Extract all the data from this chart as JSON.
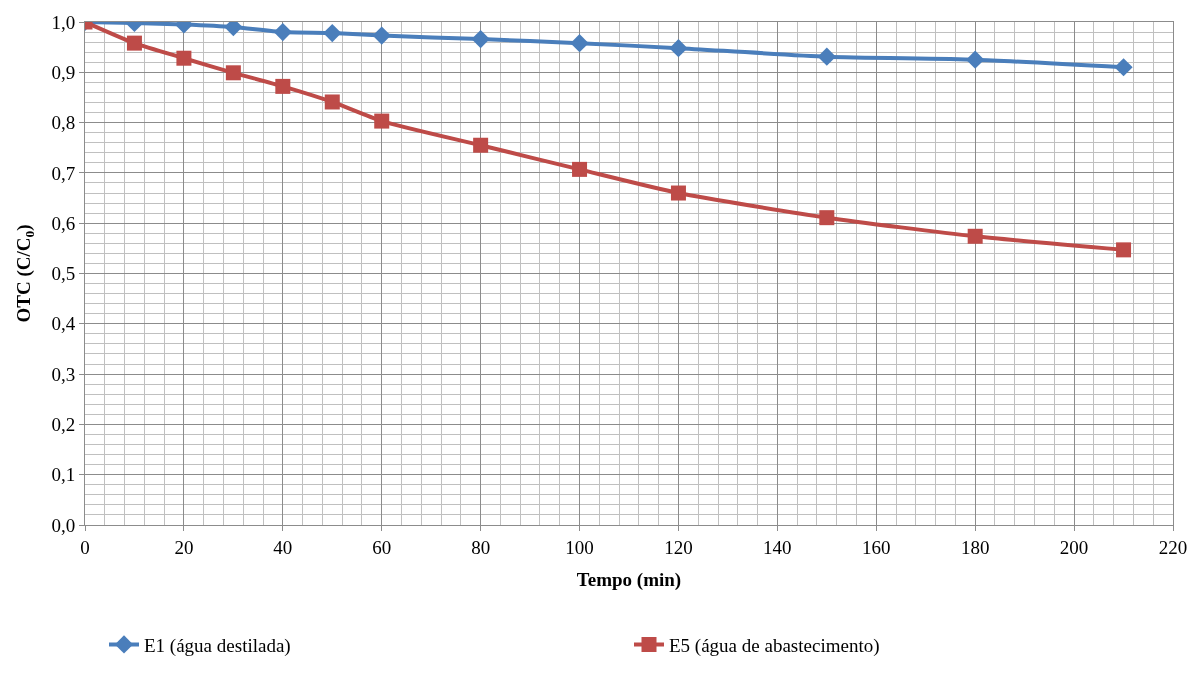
{
  "chart_data": {
    "type": "line",
    "xlabel": "Tempo (min)",
    "ylabel": "OTC (C/C$_{0}$)",
    "x": [
      0,
      10,
      20,
      30,
      40,
      50,
      60,
      80,
      100,
      120,
      150,
      180,
      210
    ],
    "series": [
      {
        "name": "E1 (água destilada)",
        "color": "#4a7ebb",
        "marker": "diamond",
        "values": [
          1.0,
          0.998,
          0.995,
          0.99,
          0.98,
          0.978,
          0.973,
          0.966,
          0.958,
          0.948,
          0.931,
          0.925,
          0.91
        ]
      },
      {
        "name": "E5 (água de abastecimento)",
        "color": "#be4b48",
        "marker": "square",
        "values": [
          1.0,
          0.958,
          0.928,
          0.899,
          0.872,
          0.841,
          0.803,
          0.755,
          0.707,
          0.66,
          0.611,
          0.574,
          0.547
        ]
      }
    ],
    "xlim": [
      0,
      220
    ],
    "xticks": [
      0,
      20,
      40,
      60,
      80,
      100,
      120,
      140,
      160,
      180,
      200,
      220
    ],
    "ylim": [
      0,
      1.0
    ],
    "yticks": [
      {
        "value": 0,
        "label": "0,0"
      },
      {
        "value": 0.1,
        "label": "0,1"
      },
      {
        "value": 0.2,
        "label": "0,2"
      },
      {
        "value": 0.3,
        "label": "0,3"
      },
      {
        "value": 0.4,
        "label": "0,4"
      },
      {
        "value": 0.5,
        "label": "0,5"
      },
      {
        "value": 0.6,
        "label": "0,6"
      },
      {
        "value": 0.7,
        "label": "0,7"
      },
      {
        "value": 0.8,
        "label": "0,8"
      },
      {
        "value": 0.9,
        "label": "0,9"
      },
      {
        "value": 1.0,
        "label": "1,0"
      }
    ],
    "grid": true,
    "legend": "bottom",
    "line_style": "solid"
  }
}
